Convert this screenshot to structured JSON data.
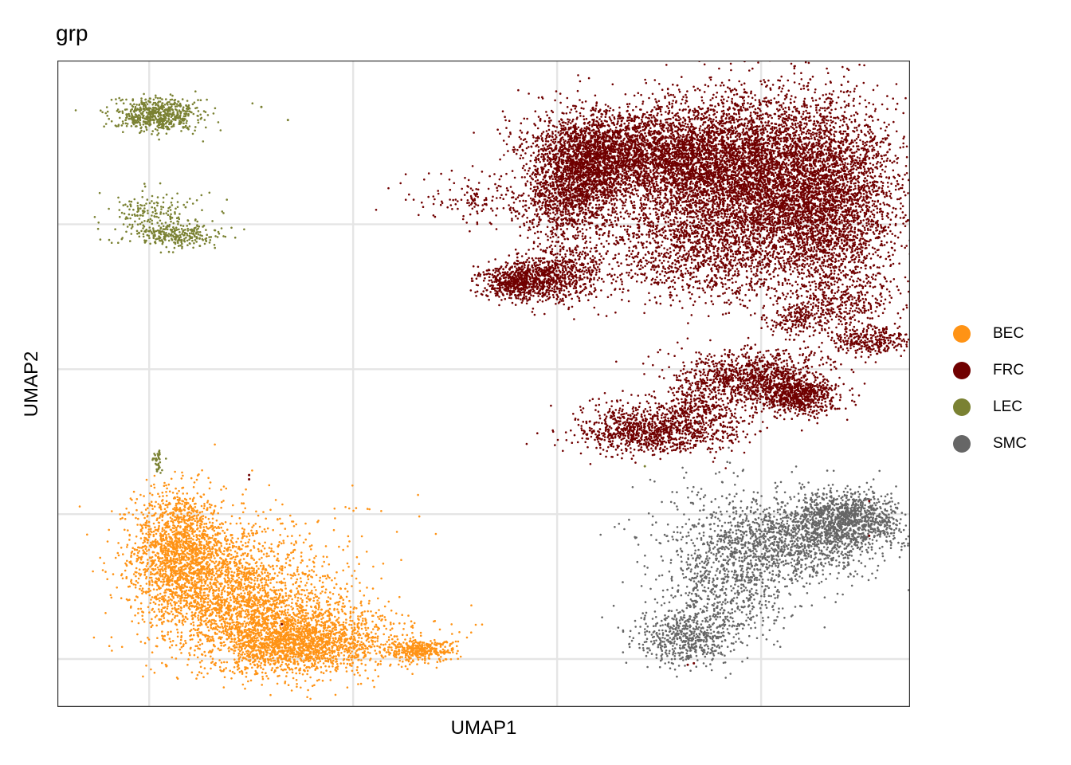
{
  "chart_data": {
    "type": "scatter",
    "title": "grp",
    "xlabel": "UMAP1",
    "ylabel": "UMAP2",
    "xlim": [
      -4.5,
      37.3
    ],
    "ylim": [
      -3.3,
      41.3
    ],
    "grid": true,
    "legend_placement": "right",
    "series": [
      {
        "name": "BEC",
        "color": "#FF9315",
        "clusters": [
          {
            "x": 1.4,
            "y": 7.6,
            "sx": 1.1,
            "sy": 2.1,
            "n": 1400
          },
          {
            "x": 3.5,
            "y": 5.0,
            "sx": 1.8,
            "sy": 2.4,
            "n": 1200
          },
          {
            "x": 5.5,
            "y": 3.0,
            "sx": 2.2,
            "sy": 1.6,
            "n": 1000
          },
          {
            "x": 7.0,
            "y": 1.0,
            "sx": 1.7,
            "sy": 1.0,
            "n": 1300
          },
          {
            "x": 9.5,
            "y": 1.5,
            "sx": 2.3,
            "sy": 1.2,
            "n": 500
          },
          {
            "x": 13.2,
            "y": 0.6,
            "sx": 0.9,
            "sy": 0.35,
            "n": 350
          },
          {
            "x": 5.0,
            "y": 6.0,
            "sx": 3.5,
            "sy": 2.5,
            "n": 400
          }
        ]
      },
      {
        "name": "FRC",
        "color": "#700000",
        "clusters": [
          {
            "x": 29.5,
            "y": 33.0,
            "sx": 3.3,
            "sy": 3.0,
            "n": 6000
          },
          {
            "x": 33.5,
            "y": 31.0,
            "sx": 1.6,
            "sy": 3.5,
            "n": 2000
          },
          {
            "x": 25.0,
            "y": 35.0,
            "sx": 3.0,
            "sy": 1.5,
            "n": 2000
          },
          {
            "x": 21.5,
            "y": 34.5,
            "sx": 1.4,
            "sy": 1.6,
            "n": 1500
          },
          {
            "x": 20.5,
            "y": 31.5,
            "sx": 1.0,
            "sy": 1.5,
            "n": 800
          },
          {
            "x": 18.0,
            "y": 26.0,
            "sx": 0.9,
            "sy": 0.6,
            "n": 600
          },
          {
            "x": 20.0,
            "y": 26.5,
            "sx": 1.2,
            "sy": 1.0,
            "n": 600
          },
          {
            "x": 27.0,
            "y": 28.0,
            "sx": 3.0,
            "sy": 1.7,
            "n": 1000
          },
          {
            "x": 34.0,
            "y": 24.5,
            "sx": 1.6,
            "sy": 1.0,
            "n": 300
          },
          {
            "x": 31.5,
            "y": 23.5,
            "sx": 0.7,
            "sy": 0.5,
            "n": 150
          },
          {
            "x": 35.3,
            "y": 22.0,
            "sx": 0.9,
            "sy": 0.5,
            "n": 300
          },
          {
            "x": 16.5,
            "y": 31.5,
            "sx": 1.7,
            "sy": 1.0,
            "n": 160
          },
          {
            "x": 29.5,
            "y": 19.5,
            "sx": 1.7,
            "sy": 0.9,
            "n": 900
          },
          {
            "x": 31.8,
            "y": 18.2,
            "sx": 1.0,
            "sy": 0.7,
            "n": 700
          },
          {
            "x": 27.0,
            "y": 17.0,
            "sx": 1.2,
            "sy": 1.3,
            "n": 500
          },
          {
            "x": 24.5,
            "y": 15.5,
            "sx": 1.6,
            "sy": 0.7,
            "n": 700
          },
          {
            "x": 23.0,
            "y": 16.5,
            "sx": 1.2,
            "sy": 0.8,
            "n": 150
          }
        ]
      },
      {
        "name": "LEC",
        "color": "#7A8132",
        "clusters": [
          {
            "x": 0.5,
            "y": 37.5,
            "sx": 1.05,
            "sy": 0.55,
            "n": 600
          },
          {
            "x": 1.4,
            "y": 29.2,
            "sx": 1.0,
            "sy": 0.45,
            "n": 250
          },
          {
            "x": -0.5,
            "y": 31.0,
            "sx": 0.9,
            "sy": 0.7,
            "n": 70
          },
          {
            "x": 0.9,
            "y": 30.5,
            "sx": 1.3,
            "sy": 1.0,
            "n": 120
          },
          {
            "x": 0.45,
            "y": 13.6,
            "sx": 0.12,
            "sy": 0.45,
            "n": 40
          }
        ]
      },
      {
        "name": "SMC",
        "color": "#666666",
        "clusters": [
          {
            "x": 34.0,
            "y": 9.5,
            "sx": 1.5,
            "sy": 1.1,
            "n": 1300
          },
          {
            "x": 31.0,
            "y": 8.0,
            "sx": 2.2,
            "sy": 1.4,
            "n": 900
          },
          {
            "x": 28.5,
            "y": 5.0,
            "sx": 1.8,
            "sy": 1.9,
            "n": 600
          },
          {
            "x": 26.3,
            "y": 1.5,
            "sx": 1.2,
            "sy": 1.0,
            "n": 550
          },
          {
            "x": 28.0,
            "y": 9.0,
            "sx": 2.0,
            "sy": 2.5,
            "n": 200
          }
        ]
      }
    ],
    "outliers": [
      {
        "series": "FRC",
        "x": 4.9,
        "y": 12.7
      },
      {
        "series": "FRC",
        "x": 4.9,
        "y": 12.4
      },
      {
        "series": "FRC",
        "x": 6.5,
        "y": 2.4
      },
      {
        "series": "FRC",
        "x": 26.4,
        "y": -0.4
      },
      {
        "series": "FRC",
        "x": 26.7,
        "y": -0.3
      },
      {
        "series": "FRC",
        "x": 35.3,
        "y": 8.5
      },
      {
        "series": "FRC",
        "x": 35.3,
        "y": 10.9
      },
      {
        "series": "LEC",
        "x": 24.3,
        "y": 13.3
      },
      {
        "series": "LEC",
        "x": 6.8,
        "y": 37.2
      },
      {
        "series": "LEC",
        "x": 5.5,
        "y": 38.1
      }
    ]
  }
}
